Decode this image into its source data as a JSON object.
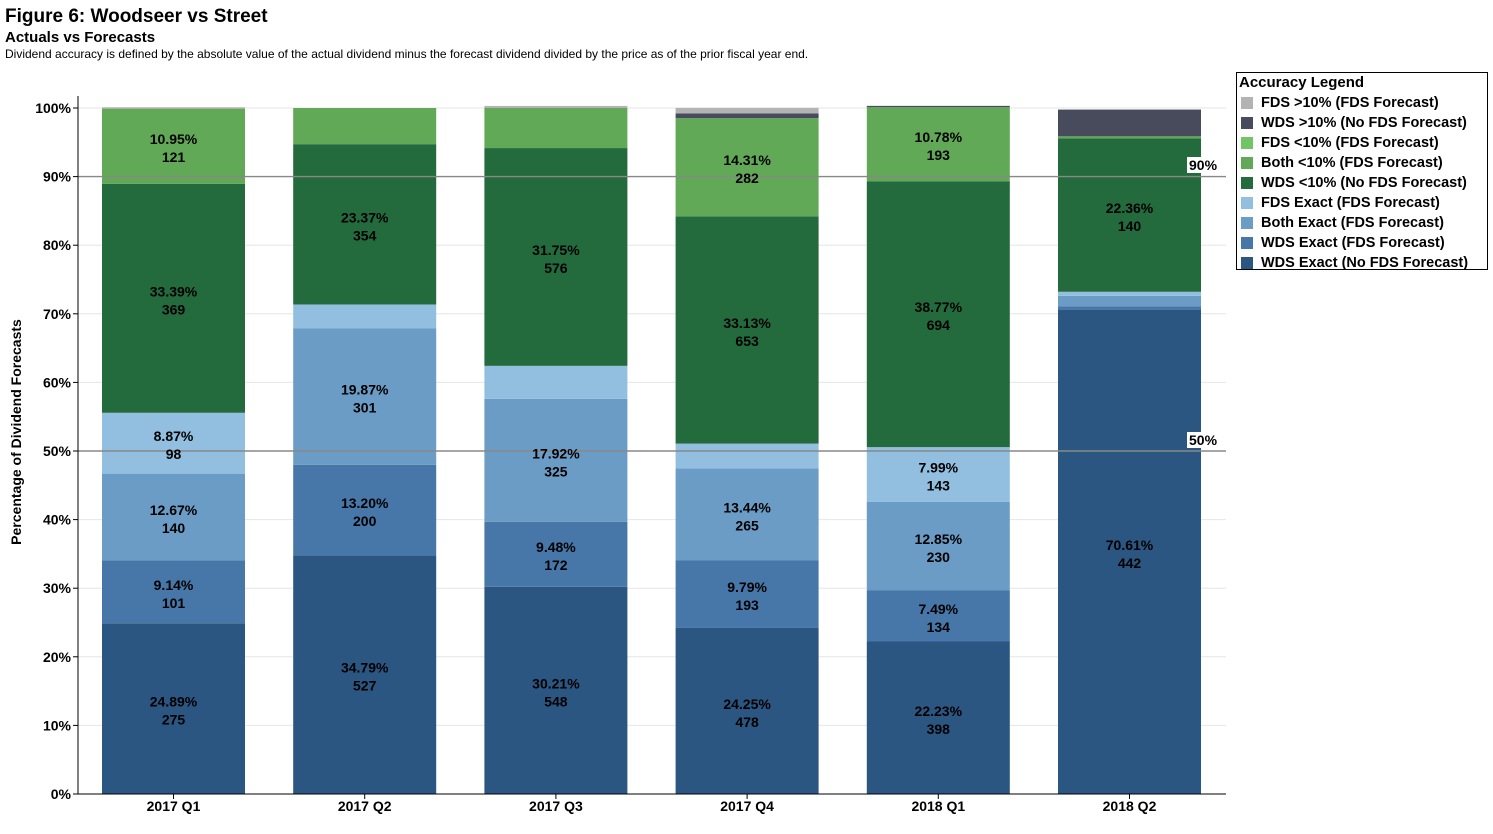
{
  "header": {
    "title": "Figure 6: Woodseer vs Street",
    "subtitle": "Actuals vs Forecasts",
    "caption": "Dividend accuracy is defined by the absolute value of the actual dividend minus the forecast dividend divided by the price as of the prior fiscal year end."
  },
  "legend": {
    "title": "Accuracy Legend",
    "items": [
      {
        "label": "FDS >10% (FDS Forecast)",
        "color": "#b3b3b3"
      },
      {
        "label": "WDS >10% (No FDS Forecast)",
        "color": "#474b5c"
      },
      {
        "label": "FDS <10% (FDS Forecast)",
        "color": "#72c465"
      },
      {
        "label": "Both <10% (FDS Forecast)",
        "color": "#61a956"
      },
      {
        "label": "WDS <10% (No FDS Forecast)",
        "color": "#236a3d"
      },
      {
        "label": "FDS Exact (FDS Forecast)",
        "color": "#92bfe0"
      },
      {
        "label": "Both Exact (FDS Forecast)",
        "color": "#6a9cc6"
      },
      {
        "label": "WDS Exact (FDS Forecast)",
        "color": "#4677a8"
      },
      {
        "label": "WDS Exact (No FDS Forecast)",
        "color": "#2b5682"
      }
    ]
  },
  "reference_lines": [
    {
      "label": "90%",
      "value": 90
    },
    {
      "label": "50%",
      "value": 50
    }
  ],
  "chart_data": {
    "type": "bar",
    "stacked": true,
    "ylabel": "Percentage of Dividend Forecasts",
    "xlabel": "",
    "ylim": [
      0,
      100
    ],
    "yticks": [
      "0%",
      "10%",
      "20%",
      "30%",
      "40%",
      "50%",
      "60%",
      "70%",
      "80%",
      "90%",
      "100%"
    ],
    "categories": [
      "2017 Q1",
      "2017 Q2",
      "2017 Q3",
      "2017 Q4",
      "2018 Q1",
      "2018 Q2"
    ],
    "series": [
      {
        "name": "WDS Exact (No FDS Forecast)",
        "color": "#2b5682",
        "values": [
          24.89,
          34.79,
          30.21,
          24.25,
          22.23,
          70.61
        ],
        "labels": [
          [
            "24.89%",
            "275"
          ],
          [
            "34.79%",
            "527"
          ],
          [
            "30.21%",
            "548"
          ],
          [
            "24.25%",
            "478"
          ],
          [
            "22.23%",
            "398"
          ],
          [
            "70.61%",
            "442"
          ]
        ]
      },
      {
        "name": "WDS Exact (FDS Forecast)",
        "color": "#4677a8",
        "values": [
          9.14,
          13.2,
          9.48,
          9.79,
          7.49,
          0.5
        ],
        "labels": [
          [
            "9.14%",
            "101"
          ],
          [
            "13.20%",
            "200"
          ],
          [
            "9.48%",
            "172"
          ],
          [
            "9.79%",
            "193"
          ],
          [
            "7.49%",
            "134"
          ],
          null
        ]
      },
      {
        "name": "Both Exact (FDS Forecast)",
        "color": "#6a9cc6",
        "values": [
          12.67,
          19.87,
          17.92,
          13.44,
          12.85,
          1.5
        ],
        "labels": [
          [
            "12.67%",
            "140"
          ],
          [
            "19.87%",
            "301"
          ],
          [
            "17.92%",
            "325"
          ],
          [
            "13.44%",
            "265"
          ],
          [
            "12.85%",
            "230"
          ],
          null
        ]
      },
      {
        "name": "FDS Exact (FDS Forecast)",
        "color": "#92bfe0",
        "values": [
          8.87,
          3.5,
          4.8,
          3.6,
          7.99,
          0.6
        ],
        "labels": [
          [
            "8.87%",
            "98"
          ],
          null,
          null,
          null,
          [
            "7.99%",
            "143"
          ],
          null
        ]
      },
      {
        "name": "WDS <10% (No FDS Forecast)",
        "color": "#236a3d",
        "values": [
          33.39,
          23.37,
          31.75,
          33.13,
          38.77,
          22.36
        ],
        "labels": [
          [
            "33.39%",
            "369"
          ],
          [
            "23.37%",
            "354"
          ],
          [
            "31.75%",
            "576"
          ],
          [
            "33.13%",
            "653"
          ],
          [
            "38.77%",
            "694"
          ],
          [
            "22.36%",
            "140"
          ]
        ]
      },
      {
        "name": "Both <10% (FDS Forecast)",
        "color": "#61a956",
        "values": [
          10.95,
          5.27,
          5.84,
          14.31,
          10.78,
          0.3
        ],
        "labels": [
          [
            "10.95%",
            "121"
          ],
          null,
          null,
          [
            "14.31%",
            "282"
          ],
          [
            "10.78%",
            "193"
          ],
          null
        ]
      },
      {
        "name": "FDS <10% (FDS Forecast)",
        "color": "#72c465",
        "values": [
          0,
          0,
          0,
          0,
          0,
          0
        ],
        "labels": [
          null,
          null,
          null,
          null,
          null,
          null
        ]
      },
      {
        "name": "WDS >10% (No FDS Forecast)",
        "color": "#474b5c",
        "values": [
          0,
          0,
          0,
          0.7,
          0.2,
          3.9
        ],
        "labels": [
          null,
          null,
          null,
          null,
          null,
          null
        ]
      },
      {
        "name": "FDS >10% (FDS Forecast)",
        "color": "#b3b3b3",
        "values": [
          0.2,
          0,
          0.3,
          0.8,
          0,
          0
        ],
        "labels": [
          null,
          null,
          null,
          null,
          null,
          null
        ]
      }
    ]
  }
}
